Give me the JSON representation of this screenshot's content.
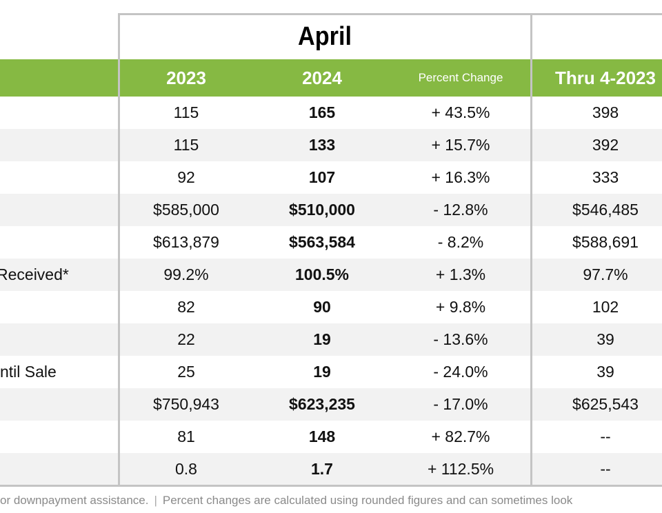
{
  "header": {
    "period_title": "April",
    "columns": [
      "2023",
      "2024",
      "Percent Change",
      "Thru 4-2023"
    ]
  },
  "colors": {
    "header_green": "#86b943",
    "alt_row": "#f2f2f2",
    "border": "#c4c4c4"
  },
  "rows": [
    {
      "label": "",
      "v2023": "115",
      "v2024": "165",
      "pct": "+ 43.5%",
      "ytd2023": "398"
    },
    {
      "label": "",
      "v2023": "115",
      "v2024": "133",
      "pct": "+ 15.7%",
      "ytd2023": "392"
    },
    {
      "label": "",
      "v2023": "92",
      "v2024": "107",
      "pct": "+ 16.3%",
      "ytd2023": "333"
    },
    {
      "label": "",
      "v2023": "$585,000",
      "v2024": "$510,000",
      "pct": "- 12.8%",
      "ytd2023": "$546,485"
    },
    {
      "label": "",
      "v2023": "$613,879",
      "v2024": "$563,584",
      "pct": "- 8.2%",
      "ytd2023": "$588,691"
    },
    {
      "label": "Received*",
      "v2023": "99.2%",
      "v2024": "100.5%",
      "pct": "+ 1.3%",
      "ytd2023": "97.7%"
    },
    {
      "label": "",
      "v2023": "82",
      "v2024": "90",
      "pct": "+ 9.8%",
      "ytd2023": "102"
    },
    {
      "label": "",
      "v2023": "22",
      "v2024": "19",
      "pct": "- 13.6%",
      "ytd2023": "39"
    },
    {
      "label": "ntil Sale",
      "v2023": "25",
      "v2024": "19",
      "pct": "- 24.0%",
      "ytd2023": "39"
    },
    {
      "label": "",
      "v2023": "$750,943",
      "v2024": "$623,235",
      "pct": "- 17.0%",
      "ytd2023": "$625,543"
    },
    {
      "label": "",
      "v2023": "81",
      "v2024": "148",
      "pct": "+ 82.7%",
      "ytd2023": "--"
    },
    {
      "label": "",
      "v2023": "0.8",
      "v2024": "1.7",
      "pct": "+ 112.5%",
      "ytd2023": "--"
    }
  ],
  "footer": {
    "left": "or downpayment assistance.",
    "separator": "|",
    "right": "Percent changes are calculated using rounded figures and can sometimes look"
  }
}
